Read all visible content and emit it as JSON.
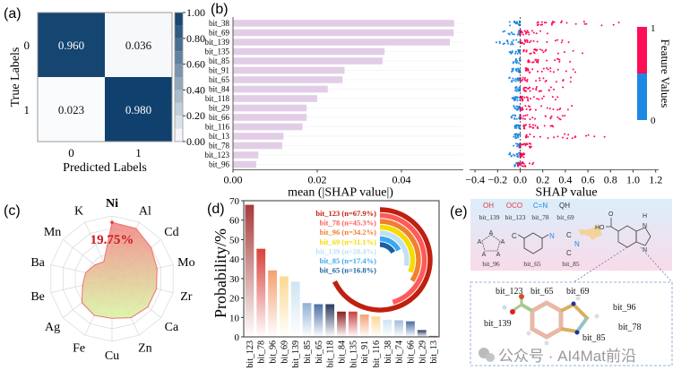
{
  "chart_data": [
    {
      "panel": "(a)",
      "type": "heatmap",
      "xlabel": "Predicted Labels",
      "ylabel": "True Labels",
      "x_ticks": [
        "0",
        "1"
      ],
      "y_ticks": [
        "0",
        "1"
      ],
      "values": [
        [
          0.96,
          0.036
        ],
        [
          0.023,
          0.98
        ]
      ],
      "value_labels": [
        [
          "0.960",
          "0.036"
        ],
        [
          "0.023",
          "0.980"
        ]
      ],
      "colorbar": {
        "range": [
          0,
          1
        ],
        "ticks": [
          "0.00",
          "0.20",
          "0.40",
          "0.60",
          "0.80",
          "1.00"
        ],
        "low_color": "#ffffff",
        "high_color": "#0b3d6b"
      }
    },
    {
      "panel": "(b)",
      "type": "bar",
      "orientation": "horizontal",
      "categories": [
        "bit_38",
        "bit_69",
        "bit_139",
        "bit_135",
        "bit_85",
        "bit_91",
        "bit_65",
        "bit_84",
        "bit_118",
        "bit_29",
        "bit_66",
        "bit_116",
        "bit_13",
        "bit_78",
        "bit_123",
        "bit_96"
      ],
      "values": [
        0.0525,
        0.0524,
        0.0515,
        0.036,
        0.0355,
        0.0265,
        0.026,
        0.0225,
        0.02,
        0.0175,
        0.0175,
        0.0165,
        0.012,
        0.0117,
        0.006,
        0.0055
      ],
      "xlabel": "mean (|SHAP value|)",
      "x_ticks": [
        "0.00",
        "0.02",
        "0.04"
      ],
      "bar_color": "#e2cde6"
    },
    {
      "panel": "(b)",
      "type": "scatter",
      "subtype": "shap-summary",
      "xlabel": "SHAP value",
      "x_ticks": [
        "−0.4",
        "−0.2",
        "0.0",
        "0.2",
        "0.4",
        "0.6",
        "0.8",
        "1.0",
        "1.2"
      ],
      "xlim": [
        -0.4,
        1.2
      ],
      "colorbar": {
        "label": "Feature Values",
        "high_label": "1",
        "low_label": "0",
        "high_color": "#ff0d57",
        "low_color": "#1e88e5"
      },
      "rows": [
        {
          "feature": "bit_38",
          "low_range": [
            -0.1,
            0
          ],
          "high_range": [
            0.15,
            0.95
          ]
        },
        {
          "feature": "bit_69",
          "low_range": [
            -0.18,
            0
          ],
          "high_range": [
            0.0,
            0.3
          ]
        },
        {
          "feature": "bit_139",
          "low_range": [
            -0.22,
            0
          ],
          "high_range": [
            0.0,
            0.47
          ]
        },
        {
          "feature": "bit_135",
          "low_range": [
            -0.1,
            0
          ],
          "high_range": [
            0.03,
            0.6
          ]
        },
        {
          "feature": "bit_85",
          "low_range": [
            -0.08,
            0
          ],
          "high_range": [
            0.07,
            0.55
          ]
        },
        {
          "feature": "bit_91",
          "low_range": [
            -0.08,
            0
          ],
          "high_range": [
            0.05,
            0.52
          ]
        },
        {
          "feature": "bit_65",
          "low_range": [
            -0.1,
            0
          ],
          "high_range": [
            0.0,
            0.47
          ]
        },
        {
          "feature": "bit_84",
          "low_range": [
            -0.06,
            0
          ],
          "high_range": [
            0.03,
            0.4
          ]
        },
        {
          "feature": "bit_118",
          "low_range": [
            -0.08,
            0
          ],
          "high_range": [
            0.0,
            0.35
          ]
        },
        {
          "feature": "bit_29",
          "low_range": [
            -0.06,
            0
          ],
          "high_range": [
            0.0,
            0.47
          ]
        },
        {
          "feature": "bit_66",
          "low_range": [
            -0.08,
            0
          ],
          "high_range": [
            0.0,
            0.43
          ]
        },
        {
          "feature": "bit_116",
          "low_range": [
            -0.05,
            0
          ],
          "high_range": [
            0.03,
            0.3
          ]
        },
        {
          "feature": "bit_13",
          "low_range": [
            -0.06,
            0
          ],
          "high_range": [
            0.05,
            0.77
          ]
        },
        {
          "feature": "bit_78",
          "low_range": [
            -0.06,
            0
          ],
          "high_range": [
            0.0,
            0.1
          ]
        },
        {
          "feature": "bit_123",
          "low_range": [
            -0.1,
            0
          ],
          "high_range": [
            0.0,
            0.05
          ]
        },
        {
          "feature": "bit_96",
          "low_range": [
            -0.05,
            0
          ],
          "high_range": [
            -0.02,
            0.12
          ]
        }
      ]
    },
    {
      "panel": "(c)",
      "type": "radar",
      "categories": [
        "Ni",
        "Al",
        "Cd",
        "Mo",
        "Zr",
        "Ca",
        "Zn",
        "Cu",
        "Fe",
        "Ag",
        "Be",
        "Ba",
        "Mn",
        "K"
      ],
      "values": [
        19.75,
        19.5,
        17.5,
        16.2,
        16.0,
        16.0,
        15.2,
        13.9,
        14.3,
        13.5,
        10.6,
        9.5,
        7.7,
        6.6
      ],
      "unit": "%",
      "highlight": "Ni",
      "annotation": "19.75%",
      "line_color": "#f07070",
      "fill_top": "#f08080",
      "fill_bottom": "#d8f5a0"
    },
    {
      "panel": "(d)",
      "type": "bar",
      "categories": [
        "bit_123",
        "bit_78",
        "bit_96",
        "bit_69",
        "bit_139",
        "bit_85",
        "bit_65",
        "bit_118",
        "bit_84",
        "bit_135",
        "bit_91",
        "bit_116",
        "bit_38",
        "bit_74",
        "bit_66",
        "bit_29",
        "bit_13"
      ],
      "values": [
        67.9,
        45.3,
        34.2,
        31.1,
        28.4,
        17.4,
        16.8,
        16.8,
        13.0,
        13.0,
        11.5,
        10.5,
        8.8,
        8.5,
        8.0,
        3.5,
        0.5
      ],
      "colors": [
        "#a83a3a",
        "#d9403a",
        "#f4a070",
        "#fcd890",
        "#cfe4f2",
        "#8fb0d6",
        "#4a6fa5",
        "#2b3a5a",
        "#8b1f1f",
        "#c9413f",
        "#f4a070",
        "#fcd890",
        "#cfe4f2",
        "#a0bcdc",
        "#4a6fa5",
        "#2b3a5a",
        "#b22222"
      ],
      "ylabel": "Probability/%",
      "y_ticks": [
        "0",
        "10",
        "20",
        "30",
        "40",
        "50",
        "60",
        "70"
      ],
      "ylim": [
        0,
        70
      ],
      "inset": {
        "type": "radial-bar",
        "items": [
          {
            "label": "bit_123 (n=67.9%)",
            "value": 67.9,
            "color": "#c0200f"
          },
          {
            "label": "bit_78 (n=45.3%)",
            "value": 45.3,
            "color": "#ff5a5a"
          },
          {
            "label": "bit_96 (n=34.2%)",
            "value": 34.2,
            "color": "#f08030"
          },
          {
            "label": "bit_69 (n=31.1%)",
            "value": 31.1,
            "color": "#f5dc00"
          },
          {
            "label": "bit_139 (n=28.4%)",
            "value": 28.4,
            "color": "#bfe0f5"
          },
          {
            "label": "bit_85 (n=17.4%)",
            "value": 17.4,
            "color": "#3aa8f0"
          },
          {
            "label": "bit_65 (n=16.8%)",
            "value": 16.8,
            "color": "#1a5fa0"
          }
        ]
      }
    }
  ],
  "panel_e": {
    "label": "(e)",
    "fragments": [
      {
        "formula": "OH",
        "name": "bit_139"
      },
      {
        "formula": "OCO",
        "name": "bit_123"
      },
      {
        "formula": "C=N",
        "name": "bit_78"
      },
      {
        "formula": "QH",
        "name": "bit_69"
      }
    ],
    "structures": [
      {
        "name": "bit_96",
        "atoms": [
          "A",
          "A",
          "A",
          "A",
          "A"
        ]
      },
      {
        "name": "bit_65",
        "atoms": [
          "C",
          "N"
        ]
      },
      {
        "name": "bit_85",
        "atoms": [
          "C",
          "N",
          "C"
        ]
      }
    ],
    "molecule": {
      "ho": "HO",
      "o": "O",
      "h": "H",
      "n1": "N",
      "n2": "N"
    },
    "model_labels": [
      "bit_123",
      "bit_65",
      "bit_69",
      "bit_96",
      "bit_139",
      "bit_78",
      "bit_85"
    ],
    "watermark": "公众号 · AI4Mat前沿"
  }
}
